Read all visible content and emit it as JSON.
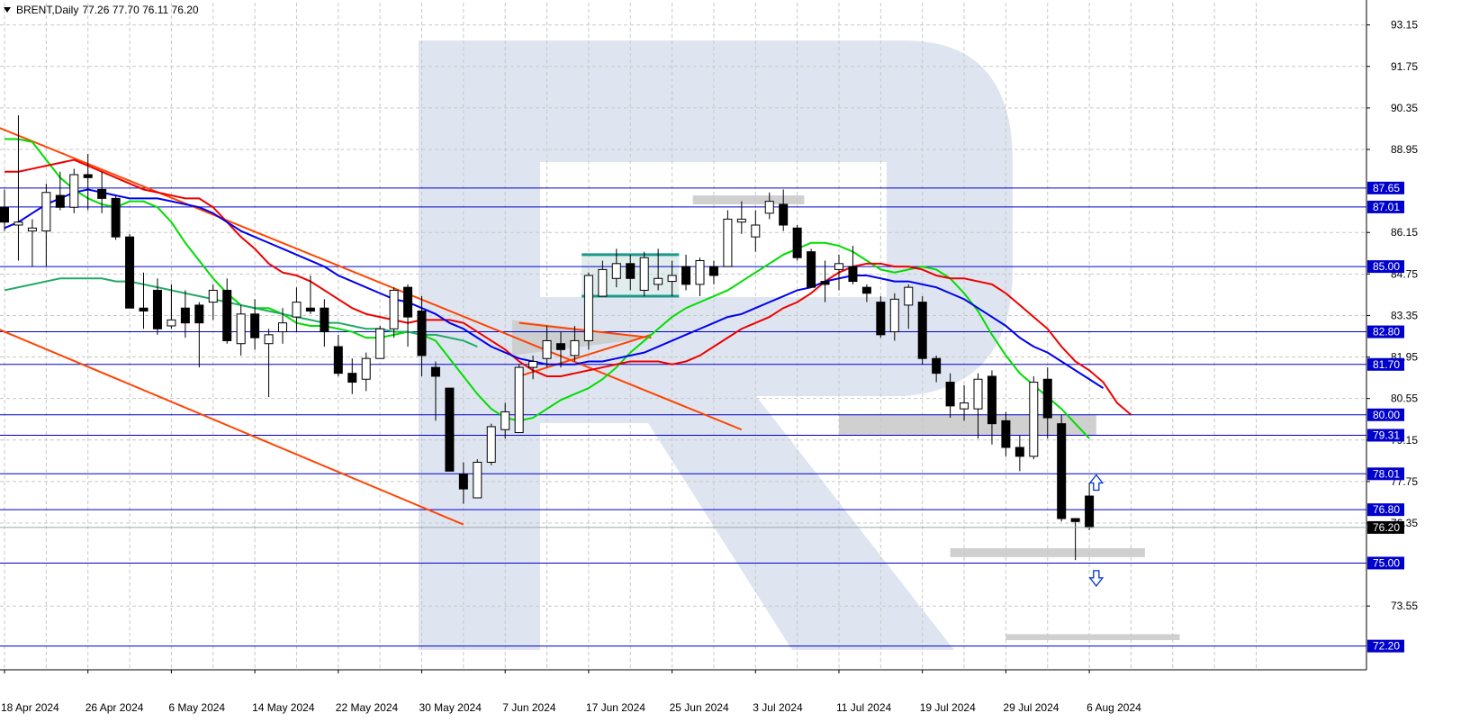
{
  "header": {
    "symbol": "BRENT,Daily",
    "ohlc": "77.26 77.70 76.11 76.20"
  },
  "colors": {
    "background": "#ffffff",
    "grid": "#c8c8c8",
    "level_line": "#0000cc",
    "level_label_bg": "#0000cc",
    "current_price_bg": "#000000",
    "bull_candle": "#ffffff",
    "bear_candle": "#000000",
    "ma_fast": "#00dd00",
    "ma_mid": "#ee0000",
    "ma_slow": "#0000ee",
    "ma_long": "#22aa66",
    "trendline": "#ff4400",
    "zone": "#c8c8c8",
    "watermark": "#dfe5f0",
    "arrow": "#0033cc"
  },
  "chart_data": {
    "type": "candlestick",
    "symbol": "BRENT",
    "timeframe": "Daily",
    "y_axis": {
      "range": [
        71.4,
        93.9
      ],
      "ticks": [
        93.15,
        91.75,
        90.35,
        88.95,
        86.15,
        84.75,
        83.35,
        81.95,
        80.55,
        79.15,
        77.75,
        76.35,
        73.55
      ]
    },
    "x_axis": {
      "ticks": [
        {
          "i": 0,
          "label": "18 Apr 2024"
        },
        {
          "i": 6,
          "label": "26 Apr 2024"
        },
        {
          "i": 12,
          "label": "6 May 2024"
        },
        {
          "i": 18,
          "label": "14 May 2024"
        },
        {
          "i": 24,
          "label": "22 May 2024"
        },
        {
          "i": 30,
          "label": "30 May 2024"
        },
        {
          "i": 36,
          "label": "7 Jun 2024"
        },
        {
          "i": 42,
          "label": "17 Jun 2024"
        },
        {
          "i": 48,
          "label": "25 Jun 2024"
        },
        {
          "i": 54,
          "label": "3 Jul 2024"
        },
        {
          "i": 60,
          "label": "11 Jul 2024"
        },
        {
          "i": 66,
          "label": "19 Jul 2024"
        },
        {
          "i": 72,
          "label": "29 Jul 2024"
        },
        {
          "i": 78,
          "label": "6 Aug 2024"
        }
      ]
    },
    "candles": [
      {
        "o": 87.0,
        "h": 87.6,
        "l": 86.2,
        "c": 86.5
      },
      {
        "o": 86.4,
        "h": 90.1,
        "l": 85.2,
        "c": 86.5
      },
      {
        "o": 86.2,
        "h": 86.6,
        "l": 85.0,
        "c": 86.3
      },
      {
        "o": 86.2,
        "h": 87.8,
        "l": 85.0,
        "c": 87.5
      },
      {
        "o": 87.4,
        "h": 88.2,
        "l": 86.9,
        "c": 87.0
      },
      {
        "o": 87.0,
        "h": 88.3,
        "l": 86.8,
        "c": 88.1
      },
      {
        "o": 88.1,
        "h": 88.8,
        "l": 86.9,
        "c": 88.0
      },
      {
        "o": 87.6,
        "h": 88.2,
        "l": 86.8,
        "c": 87.3
      },
      {
        "o": 87.3,
        "h": 87.4,
        "l": 85.9,
        "c": 86.0
      },
      {
        "o": 86.0,
        "h": 86.1,
        "l": 83.6,
        "c": 83.6
      },
      {
        "o": 83.6,
        "h": 84.8,
        "l": 82.9,
        "c": 83.5
      },
      {
        "o": 84.2,
        "h": 84.6,
        "l": 82.7,
        "c": 82.9
      },
      {
        "o": 83.0,
        "h": 84.4,
        "l": 82.9,
        "c": 83.2
      },
      {
        "o": 83.6,
        "h": 84.2,
        "l": 82.6,
        "c": 83.1
      },
      {
        "o": 83.7,
        "h": 83.8,
        "l": 81.6,
        "c": 83.1
      },
      {
        "o": 83.8,
        "h": 84.4,
        "l": 83.2,
        "c": 84.2
      },
      {
        "o": 84.2,
        "h": 84.6,
        "l": 82.4,
        "c": 82.5
      },
      {
        "o": 82.4,
        "h": 83.7,
        "l": 82.0,
        "c": 83.4
      },
      {
        "o": 83.4,
        "h": 83.9,
        "l": 82.2,
        "c": 82.6
      },
      {
        "o": 82.4,
        "h": 82.9,
        "l": 80.6,
        "c": 82.7
      },
      {
        "o": 82.8,
        "h": 83.6,
        "l": 82.4,
        "c": 83.1
      },
      {
        "o": 83.3,
        "h": 84.3,
        "l": 82.8,
        "c": 83.8
      },
      {
        "o": 83.6,
        "h": 84.7,
        "l": 83.4,
        "c": 83.5
      },
      {
        "o": 83.6,
        "h": 83.9,
        "l": 82.3,
        "c": 82.8
      },
      {
        "o": 82.3,
        "h": 82.7,
        "l": 81.3,
        "c": 81.4
      },
      {
        "o": 81.4,
        "h": 81.9,
        "l": 80.7,
        "c": 81.1
      },
      {
        "o": 81.2,
        "h": 82.1,
        "l": 80.8,
        "c": 81.9
      },
      {
        "o": 81.9,
        "h": 83.0,
        "l": 81.9,
        "c": 82.9
      },
      {
        "o": 82.9,
        "h": 84.3,
        "l": 82.6,
        "c": 84.2
      },
      {
        "o": 84.3,
        "h": 84.4,
        "l": 82.3,
        "c": 83.3
      },
      {
        "o": 83.5,
        "h": 84.0,
        "l": 81.3,
        "c": 82.0
      },
      {
        "o": 81.6,
        "h": 81.8,
        "l": 79.8,
        "c": 81.3
      },
      {
        "o": 80.9,
        "h": 80.9,
        "l": 78.1,
        "c": 78.1
      },
      {
        "o": 78.0,
        "h": 78.4,
        "l": 77.0,
        "c": 77.5
      },
      {
        "o": 77.2,
        "h": 78.5,
        "l": 77.2,
        "c": 78.4
      },
      {
        "o": 78.4,
        "h": 79.7,
        "l": 78.3,
        "c": 79.6
      },
      {
        "o": 79.5,
        "h": 80.4,
        "l": 79.2,
        "c": 80.1
      },
      {
        "o": 79.4,
        "h": 81.7,
        "l": 79.4,
        "c": 81.6
      },
      {
        "o": 81.6,
        "h": 82.0,
        "l": 81.2,
        "c": 81.8
      },
      {
        "o": 81.9,
        "h": 83.0,
        "l": 81.6,
        "c": 82.5
      },
      {
        "o": 82.4,
        "h": 82.8,
        "l": 81.6,
        "c": 82.2
      },
      {
        "o": 82.0,
        "h": 83.0,
        "l": 81.8,
        "c": 82.5
      },
      {
        "o": 82.5,
        "h": 84.8,
        "l": 82.2,
        "c": 84.7
      },
      {
        "o": 84.0,
        "h": 85.2,
        "l": 84.0,
        "c": 84.9
      },
      {
        "o": 84.6,
        "h": 85.6,
        "l": 84.3,
        "c": 85.1
      },
      {
        "o": 85.1,
        "h": 85.4,
        "l": 84.2,
        "c": 84.6
      },
      {
        "o": 84.2,
        "h": 85.5,
        "l": 84.0,
        "c": 85.3
      },
      {
        "o": 84.4,
        "h": 85.6,
        "l": 84.2,
        "c": 84.6
      },
      {
        "o": 84.5,
        "h": 85.2,
        "l": 84.0,
        "c": 84.7
      },
      {
        "o": 85.0,
        "h": 85.4,
        "l": 84.2,
        "c": 84.4
      },
      {
        "o": 84.4,
        "h": 85.3,
        "l": 84.0,
        "c": 85.2
      },
      {
        "o": 85.0,
        "h": 85.2,
        "l": 84.4,
        "c": 84.7
      },
      {
        "o": 85.0,
        "h": 86.9,
        "l": 85.0,
        "c": 86.6
      },
      {
        "o": 86.5,
        "h": 87.2,
        "l": 86.1,
        "c": 86.6
      },
      {
        "o": 86.0,
        "h": 86.9,
        "l": 85.5,
        "c": 86.4
      },
      {
        "o": 86.8,
        "h": 87.5,
        "l": 86.6,
        "c": 87.2
      },
      {
        "o": 87.1,
        "h": 87.6,
        "l": 86.2,
        "c": 86.4
      },
      {
        "o": 86.3,
        "h": 86.4,
        "l": 85.2,
        "c": 85.3
      },
      {
        "o": 85.5,
        "h": 85.6,
        "l": 84.3,
        "c": 84.3
      },
      {
        "o": 84.5,
        "h": 85.2,
        "l": 83.8,
        "c": 84.4
      },
      {
        "o": 84.9,
        "h": 85.4,
        "l": 84.2,
        "c": 85.1
      },
      {
        "o": 85.0,
        "h": 85.7,
        "l": 84.4,
        "c": 84.5
      },
      {
        "o": 84.3,
        "h": 84.4,
        "l": 83.8,
        "c": 84.1
      },
      {
        "o": 83.8,
        "h": 84.0,
        "l": 82.6,
        "c": 82.7
      },
      {
        "o": 82.8,
        "h": 84.1,
        "l": 82.5,
        "c": 83.9
      },
      {
        "o": 83.7,
        "h": 84.4,
        "l": 82.9,
        "c": 84.3
      },
      {
        "o": 83.8,
        "h": 84.0,
        "l": 81.7,
        "c": 81.9
      },
      {
        "o": 81.9,
        "h": 82.0,
        "l": 81.1,
        "c": 81.4
      },
      {
        "o": 81.1,
        "h": 81.4,
        "l": 79.9,
        "c": 80.3
      },
      {
        "o": 80.2,
        "h": 81.0,
        "l": 79.8,
        "c": 80.4
      },
      {
        "o": 80.2,
        "h": 81.4,
        "l": 79.2,
        "c": 81.2
      },
      {
        "o": 81.3,
        "h": 81.5,
        "l": 79.0,
        "c": 79.7
      },
      {
        "o": 79.8,
        "h": 80.1,
        "l": 78.6,
        "c": 78.9
      },
      {
        "o": 78.9,
        "h": 79.3,
        "l": 78.1,
        "c": 78.6
      },
      {
        "o": 78.6,
        "h": 81.3,
        "l": 78.5,
        "c": 81.1
      },
      {
        "o": 81.2,
        "h": 81.6,
        "l": 79.2,
        "c": 79.9
      },
      {
        "o": 79.7,
        "h": 80.0,
        "l": 76.4,
        "c": 76.5
      },
      {
        "o": 76.5,
        "h": 76.5,
        "l": 75.1,
        "c": 76.4
      },
      {
        "o": 77.26,
        "h": 77.7,
        "l": 76.11,
        "c": 76.2
      }
    ],
    "moving_averages": [
      {
        "color": "#00dd00",
        "values": [
          89.3,
          89.3,
          89.2,
          88.6,
          88.0,
          87.6,
          87.3,
          87.1,
          87.0,
          87.2,
          87.2,
          87.0,
          86.5,
          85.8,
          85.2,
          84.6,
          84.1,
          83.7,
          83.6,
          83.6,
          83.4,
          83.1,
          83.0,
          83.0,
          82.9,
          82.8,
          82.6,
          82.6,
          82.7,
          82.8,
          82.7,
          82.5,
          81.9,
          81.3,
          80.7,
          80.2,
          79.9,
          79.8,
          79.9,
          80.2,
          80.5,
          80.7,
          80.9,
          81.2,
          81.6,
          82.1,
          82.5,
          82.9,
          83.3,
          83.6,
          83.8,
          84.0,
          84.2,
          84.5,
          84.8,
          85.1,
          85.4,
          85.6,
          85.8,
          85.8,
          85.7,
          85.5,
          85.2,
          84.9,
          84.8,
          84.9,
          85.0,
          84.9,
          84.6,
          84.1,
          83.5,
          82.7,
          82.0,
          81.4,
          81.0,
          80.6,
          80.2,
          79.7,
          79.2
        ]
      },
      {
        "color": "#ee0000",
        "values": [
          88.2,
          88.2,
          88.3,
          88.4,
          88.5,
          88.6,
          88.4,
          88.2,
          88.0,
          87.8,
          87.6,
          87.5,
          87.4,
          87.3,
          87.3,
          87.0,
          86.5,
          86.0,
          85.6,
          85.1,
          84.8,
          84.7,
          84.5,
          84.2,
          83.9,
          83.6,
          83.4,
          83.3,
          83.2,
          83.1,
          83.2,
          83.2,
          83.2,
          83.1,
          82.8,
          82.5,
          82.2,
          81.8,
          81.5,
          81.3,
          81.3,
          81.4,
          81.5,
          81.6,
          81.7,
          81.8,
          81.8,
          81.8,
          81.7,
          81.8,
          82.0,
          82.3,
          82.6,
          82.9,
          83.1,
          83.3,
          83.6,
          83.8,
          84.1,
          84.5,
          84.8,
          85.0,
          85.1,
          85.1,
          85.0,
          85.0,
          84.9,
          84.7,
          84.6,
          84.6,
          84.5,
          84.4,
          84.1,
          83.7,
          83.3,
          82.9,
          82.3,
          81.8,
          81.5,
          81.1,
          80.4,
          80.0
        ]
      },
      {
        "color": "#0000ee",
        "values": [
          86.3,
          86.5,
          86.8,
          87.1,
          87.3,
          87.5,
          87.6,
          87.5,
          87.4,
          87.3,
          87.3,
          87.3,
          87.2,
          87.1,
          87.0,
          86.8,
          86.5,
          86.2,
          86.0,
          85.8,
          85.6,
          85.4,
          85.2,
          85.0,
          84.7,
          84.5,
          84.3,
          84.1,
          83.9,
          83.8,
          83.6,
          83.4,
          83.1,
          82.9,
          82.6,
          82.3,
          82.1,
          81.9,
          81.8,
          81.7,
          81.7,
          81.7,
          81.8,
          81.8,
          81.9,
          82.0,
          82.1,
          82.3,
          82.5,
          82.7,
          82.9,
          83.1,
          83.3,
          83.4,
          83.6,
          83.8,
          84.0,
          84.2,
          84.3,
          84.5,
          84.6,
          84.7,
          84.7,
          84.6,
          84.5,
          84.5,
          84.4,
          84.3,
          84.1,
          83.9,
          83.6,
          83.3,
          83.0,
          82.6,
          82.3,
          82.1,
          81.8,
          81.5,
          81.2,
          80.9
        ]
      },
      {
        "color": "#22aa66",
        "values": [
          84.2,
          84.3,
          84.4,
          84.5,
          84.6,
          84.6,
          84.6,
          84.6,
          84.5,
          84.5,
          84.4,
          84.3,
          84.2,
          84.1,
          84.0,
          83.9,
          83.8,
          83.7,
          83.6,
          83.5,
          83.4,
          83.3,
          83.2,
          83.1,
          83.1,
          83.0,
          82.9,
          82.9,
          82.8,
          82.8,
          82.7,
          82.7,
          82.6,
          82.5,
          82.3
        ]
      }
    ],
    "horizontal_levels": [
      87.65,
      87.01,
      85.0,
      82.8,
      81.7,
      80.0,
      79.31,
      78.01,
      76.8,
      75.0,
      72.2
    ],
    "level_labels": [
      "87.65",
      "87.01",
      "85.00",
      "82.80",
      "81.70",
      "80.00",
      "79.31",
      "78.01",
      "76.80",
      "75.00",
      "72.20"
    ],
    "current_price": 76.2,
    "current_price_label": "76.20",
    "trendlines": [
      {
        "from": [
          -1,
          89.8
        ],
        "to": [
          53,
          79.5
        ]
      },
      {
        "from": [
          -1,
          83.0
        ],
        "to": [
          33,
          76.3
        ]
      },
      {
        "from": [
          37,
          81.3
        ],
        "to": [
          46.5,
          82.7
        ]
      },
      {
        "from": [
          37,
          83.1
        ],
        "to": [
          46.5,
          82.6
        ]
      }
    ],
    "zones": [
      {
        "x0": 49.5,
        "x1": 57.5,
        "y0": 87.1,
        "y1": 87.4
      },
      {
        "x0": 60.0,
        "x1": 78.5,
        "y0": 79.3,
        "y1": 80.0
      },
      {
        "x0": 68.0,
        "x1": 82.0,
        "y0": 75.2,
        "y1": 75.5
      },
      {
        "x0": 72.0,
        "x1": 84.5,
        "y0": 72.4,
        "y1": 72.6
      }
    ],
    "channel_box": {
      "x0": 41.5,
      "x1": 48.5,
      "y0": 84.0,
      "y1": 85.4
    },
    "triangle_zone": {
      "x0": 36.5,
      "x1": 46.5,
      "y0": 82.0,
      "y1": 83.2
    },
    "arrows": [
      {
        "dir": "up",
        "i": 78.5,
        "y": 77.7
      },
      {
        "dir": "down",
        "i": 78.5,
        "y": 74.5
      }
    ],
    "grid": true
  }
}
